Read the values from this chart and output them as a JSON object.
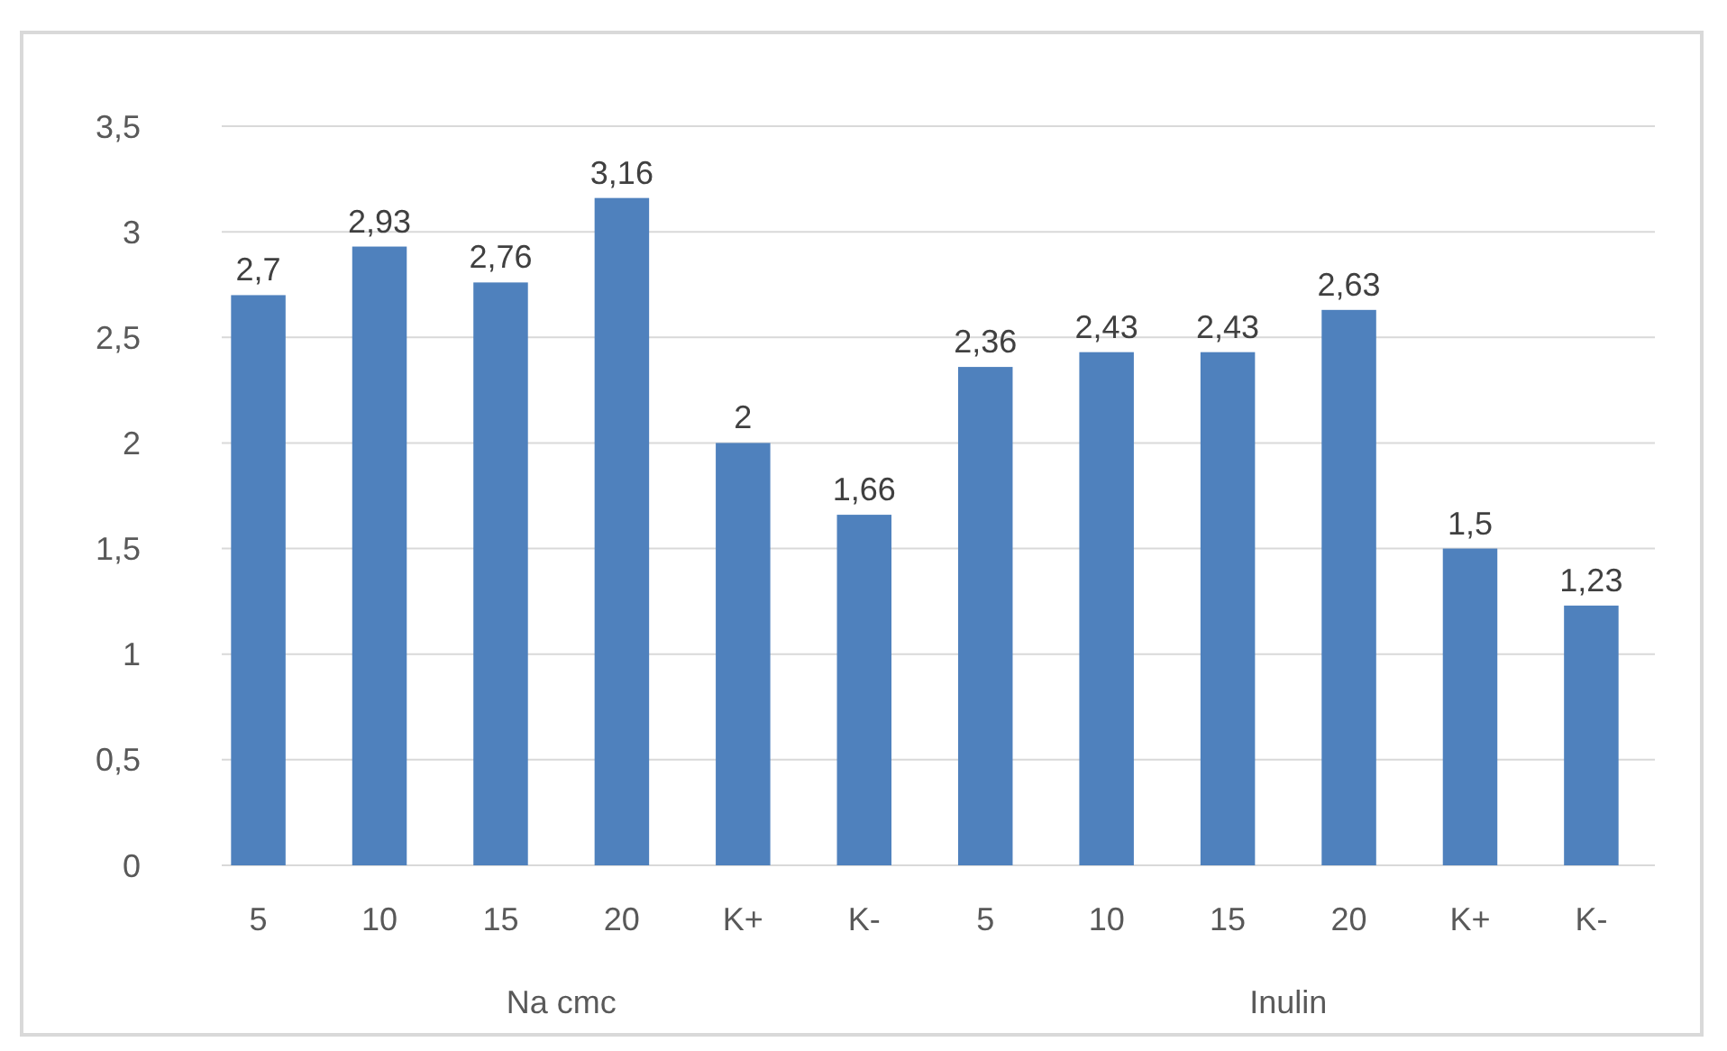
{
  "chart_data": {
    "type": "bar",
    "categories": [
      "5",
      "10",
      "15",
      "20",
      "K+",
      "K-",
      "5",
      "10",
      "15",
      "20",
      "K+",
      "K-"
    ],
    "values": [
      2.7,
      2.93,
      2.76,
      3.16,
      2,
      1.66,
      2.36,
      2.43,
      2.43,
      2.63,
      1.5,
      1.23
    ],
    "value_labels": [
      "2,7",
      "2,93",
      "2,76",
      "3,16",
      "2",
      "1,66",
      "2,36",
      "2,43",
      "2,43",
      "2,63",
      "1,5",
      "1,23"
    ],
    "color": "#4f81bd",
    "ylim": [
      0,
      3.5
    ],
    "yticks": [
      0,
      {
        "value": 0.5,
        "label": "0,5"
      },
      1,
      {
        "value": 1.5,
        "label": "1,5"
      },
      2,
      {
        "value": 2.5,
        "label": "2,5"
      },
      3,
      {
        "value": 3.5,
        "label": "3,5"
      }
    ],
    "grid": "y",
    "annotations": [
      "Na cmc",
      "Inulin"
    ]
  }
}
